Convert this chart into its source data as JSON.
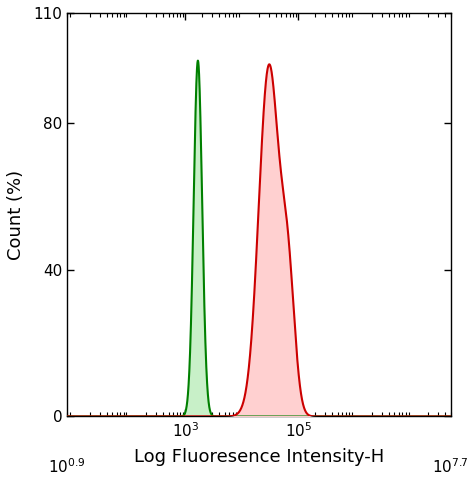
{
  "title": "",
  "xlabel": "Log Fluoresence Intensity-H",
  "ylabel": "Count (%)",
  "xlim_log": [
    0.9,
    7.7
  ],
  "ylim": [
    0,
    110
  ],
  "ytick_positions": [
    0,
    40,
    80,
    110
  ],
  "ytick_labels": [
    "0",
    "40",
    "80",
    "110"
  ],
  "xtick_major_log": [
    3,
    5
  ],
  "xtick_edge_log": [
    0.9,
    7.7
  ],
  "green_color": "#008000",
  "red_color": "#cc0000",
  "green_fill": "#c8f0c8",
  "red_fill": "#ffd0d0",
  "green_peak_log": 3.22,
  "green_sigma_log": 0.075,
  "green_height": 97,
  "red_peak_log": 4.48,
  "red_sigma_log": 0.18,
  "red_height": 96,
  "red_shoulder_log": 4.82,
  "red_shoulder_sigma": 0.12,
  "red_shoulder_height": 34,
  "background_color": "#ffffff",
  "axes_background": "#ffffff",
  "linewidth": 1.5,
  "tick_fontsize": 11,
  "label_fontsize": 13
}
